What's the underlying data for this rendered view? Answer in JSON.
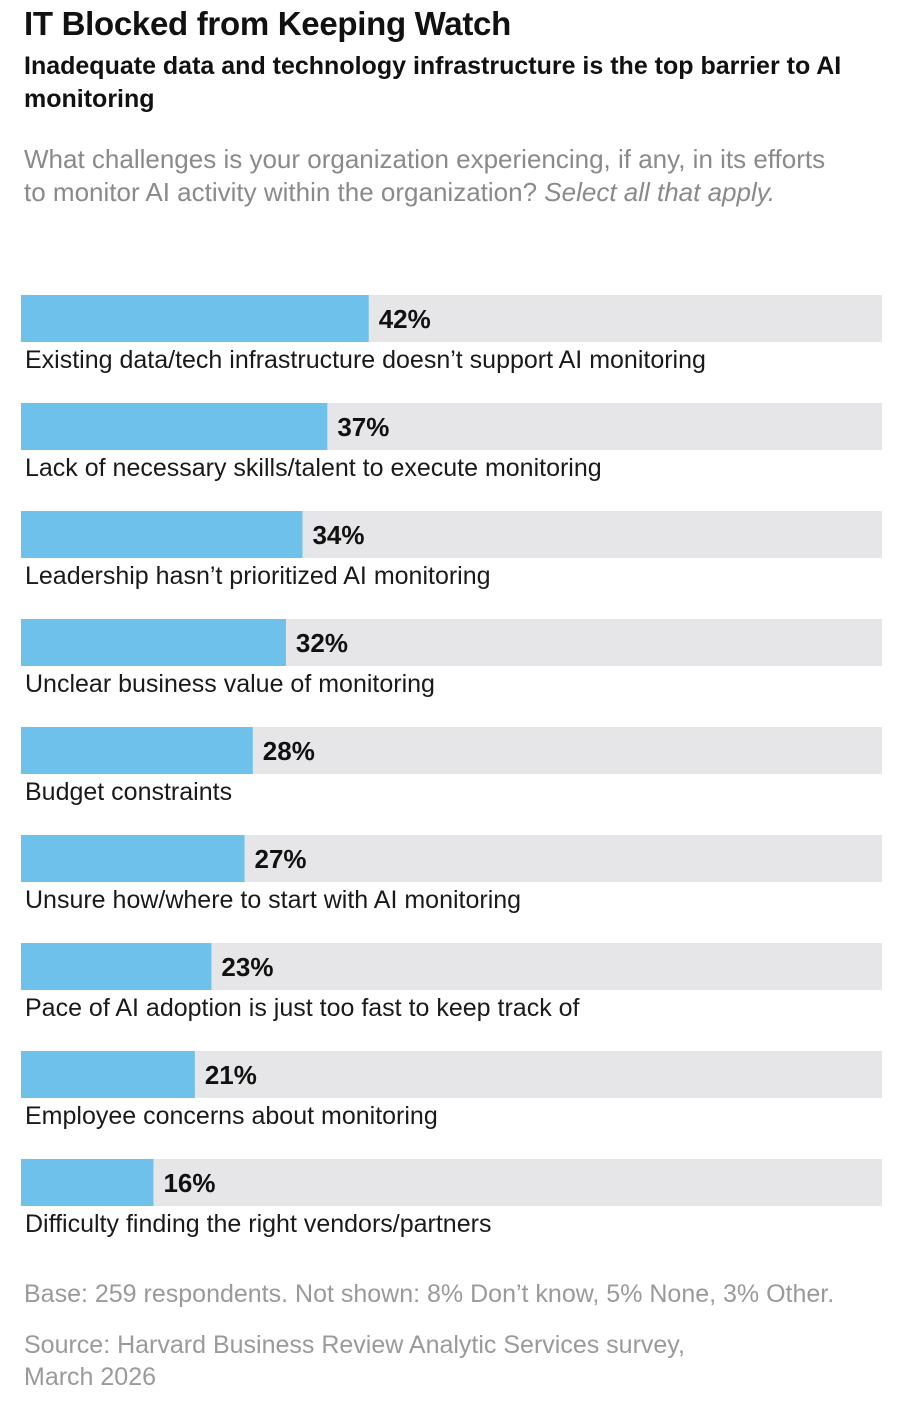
{
  "header": {
    "title": "IT Blocked from Keeping Watch",
    "subtitle": "Inadequate data and technology infrastructure is the top barrier to AI monitoring",
    "question": "What challenges is your organization experiencing, if any, in its efforts to monitor AI activity within the organization?",
    "question_instruction": "Select all that apply."
  },
  "chart_data": {
    "type": "bar",
    "orientation": "horizontal",
    "categories": [
      "Existing data/tech infrastructure doesn’t support AI monitoring",
      "Lack of necessary skills/talent to execute monitoring",
      "Leadership hasn’t prioritized AI monitoring",
      "Unclear business value of monitoring",
      "Budget constraints",
      "Unsure how/where to start with AI monitoring",
      "Pace of AI adoption is just too fast to keep track of",
      "Employee concerns about monitoring",
      "Difficulty finding the right vendors/partners"
    ],
    "values": [
      42,
      37,
      34,
      32,
      28,
      27,
      23,
      21,
      16
    ],
    "value_labels": [
      "42%",
      "37%",
      "34%",
      "32%",
      "28%",
      "27%",
      "23%",
      "21%",
      "16%"
    ],
    "unit": "%",
    "xlim": [
      0,
      104
    ],
    "grid": false,
    "colors": {
      "bar": "#6ec1ea",
      "track": "#e6e6e8"
    }
  },
  "footer": {
    "base": "Base: 259 respondents. Not shown: 8% Don’t know, 5% None, 3% Other.",
    "source": "Source: Harvard Business Review Analytic Services survey, March 2026"
  }
}
